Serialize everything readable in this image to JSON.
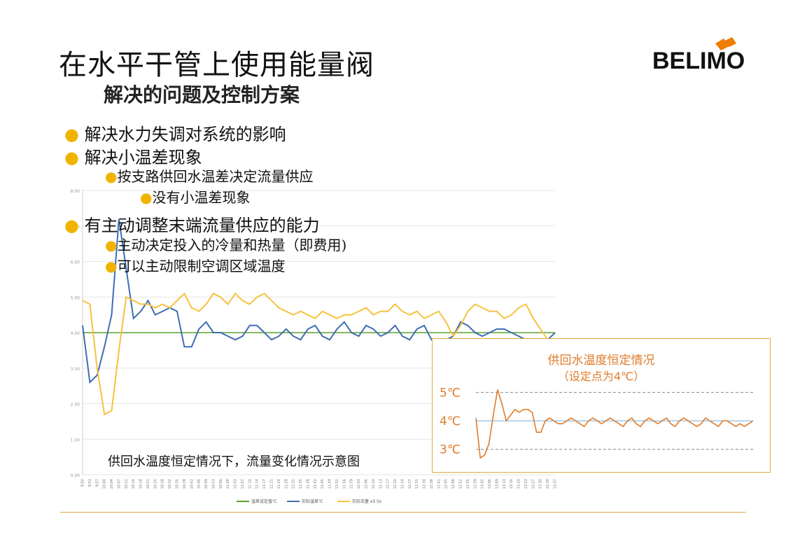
{
  "slide": {
    "title": "在水平干管上使用能量阀",
    "subtitle": "解决的问题及控制方案",
    "logo_text": "BELIMO",
    "bullets": [
      {
        "level": 1,
        "text": "解决水力失调对系统的影响"
      },
      {
        "level": 1,
        "text": "解决小温差现象"
      },
      {
        "level": 2,
        "text": "按支路供回水温差决定流量供应"
      },
      {
        "level": 3,
        "text": "没有小温差现象"
      },
      {
        "level": 1,
        "text": "有主动调整末端流量供应的能力"
      },
      {
        "level": 2,
        "text": "主动决定投入的冷量和热量（即费用)"
      },
      {
        "level": 2,
        "text": "可以主动限制空调区域温度"
      }
    ],
    "caption": "供回水温度恒定情况下，流量变化情况示意图",
    "colors": {
      "accent": "#f0b400",
      "green": "#5aa02c",
      "blue": "#3e6db5",
      "yellow": "#f6c23e",
      "orange": "#e07b2a",
      "border": "#e2a840"
    }
  },
  "chart_data": [
    {
      "type": "line",
      "title": "",
      "ylim": [
        0,
        8
      ],
      "yticks": [
        "0.00",
        "1.00",
        "2.00",
        "3.00",
        "4.00",
        "5.00",
        "6.00",
        "7.00",
        "8.00"
      ],
      "x": [
        "9:50",
        "9:53",
        "9:57",
        "10:00",
        "10:04",
        "10:07",
        "10:11",
        "10:14",
        "10:18",
        "10:21",
        "10:25",
        "10:28",
        "10:32",
        "10:35",
        "10:39",
        "10:42",
        "10:46",
        "10:49",
        "10:53",
        "10:56",
        "11:00",
        "11:03",
        "11:07",
        "11:10",
        "11:14",
        "11:17",
        "11:21",
        "11:24",
        "11:28",
        "11:31",
        "11:35",
        "11:38",
        "11:42",
        "11:45",
        "11:49",
        "11:52",
        "11:56",
        "11:59",
        "12:03",
        "12:06",
        "12:10",
        "12:13",
        "12:17",
        "12:20",
        "12:24",
        "12:27",
        "12:31",
        "12:34",
        "12:38",
        "12:41",
        "12:45",
        "12:48",
        "12:52",
        "12:55",
        "12:59",
        "13:02",
        "13:06",
        "13:09",
        "13:13",
        "13:16",
        "13:20",
        "13:23",
        "13:27",
        "13:30",
        "13:34",
        "13:37"
      ],
      "series": [
        {
          "name": "温差设定值℃",
          "color": "#5aa02c",
          "values": [
            4,
            4,
            4,
            4,
            4,
            4,
            4,
            4,
            4,
            4,
            4,
            4,
            4,
            4,
            4,
            4,
            4,
            4,
            4,
            4,
            4,
            4,
            4,
            4,
            4,
            4,
            4,
            4,
            4,
            4,
            4,
            4,
            4,
            4,
            4,
            4,
            4,
            4,
            4,
            4,
            4,
            4,
            4,
            4,
            4,
            4,
            4,
            4,
            4,
            4,
            4,
            4,
            4,
            4,
            4,
            4,
            4,
            4,
            4,
            4,
            4,
            4,
            4,
            4,
            4,
            4
          ]
        },
        {
          "name": "实际温差℃",
          "color": "#3e6db5",
          "values": [
            4.2,
            2.6,
            2.8,
            3.6,
            4.5,
            7.2,
            5.8,
            4.4,
            4.6,
            4.9,
            4.5,
            4.6,
            4.7,
            4.6,
            3.6,
            3.6,
            4.1,
            4.3,
            4.0,
            4.0,
            3.9,
            3.8,
            3.9,
            4.2,
            4.2,
            4.0,
            3.8,
            3.9,
            4.1,
            3.9,
            3.8,
            4.1,
            4.2,
            3.9,
            3.8,
            4.1,
            4.3,
            4.0,
            3.9,
            4.2,
            4.1,
            3.9,
            4.0,
            4.2,
            3.9,
            3.8,
            4.1,
            4.2,
            3.8,
            3.7,
            3.8,
            3.9,
            4.3,
            4.2,
            4.0,
            3.9,
            4.0,
            4.1,
            4.1,
            4.0,
            3.9,
            3.8,
            3.7,
            3.7,
            3.8,
            4.0
          ]
        },
        {
          "name": "实际流量 x5 l/s",
          "color": "#f6c23e",
          "values": [
            4.9,
            4.8,
            3.0,
            1.7,
            1.8,
            3.5,
            5.0,
            4.9,
            4.8,
            4.8,
            4.7,
            4.8,
            4.7,
            4.9,
            5.1,
            4.7,
            4.6,
            4.8,
            5.1,
            5.0,
            4.8,
            5.1,
            4.9,
            4.8,
            5.0,
            5.1,
            4.9,
            4.7,
            4.6,
            4.5,
            4.6,
            4.5,
            4.4,
            4.6,
            4.5,
            4.4,
            4.5,
            4.5,
            4.6,
            4.7,
            4.5,
            4.6,
            4.6,
            4.8,
            4.6,
            4.5,
            4.6,
            4.4,
            4.5,
            4.6,
            4.3,
            3.9,
            4.2,
            4.6,
            4.8,
            4.7,
            4.6,
            4.6,
            4.4,
            4.5,
            4.7,
            4.8,
            4.4,
            4.1,
            3.8,
            3.7
          ]
        }
      ],
      "legend_position": "bottom"
    },
    {
      "type": "line",
      "title": "供回水温度恒定情况",
      "subtitle": "（设定点为4℃）",
      "ylim": [
        2.5,
        5.5
      ],
      "reference_lines": [
        {
          "label": "5℃",
          "value": 5,
          "style": "dashed"
        },
        {
          "label": "4℃",
          "value": 4,
          "style": "solid",
          "color": "#7aaed6"
        },
        {
          "label": "3℃",
          "value": 3,
          "style": "dashed"
        }
      ],
      "series": [
        {
          "name": "",
          "color": "#e07b2a",
          "values": [
            4.1,
            2.7,
            2.8,
            3.2,
            4.2,
            5.1,
            4.6,
            4.0,
            4.2,
            4.4,
            4.3,
            4.4,
            4.4,
            4.3,
            3.6,
            3.6,
            4.0,
            4.1,
            4.0,
            3.9,
            3.9,
            4.0,
            4.1,
            4.0,
            3.9,
            3.8,
            4.0,
            4.1,
            4.0,
            3.9,
            4.0,
            4.1,
            4.0,
            3.9,
            3.8,
            4.0,
            4.1,
            3.9,
            3.8,
            4.0,
            4.1,
            4.0,
            3.9,
            4.0,
            4.1,
            3.9,
            3.8,
            4.0,
            4.1,
            4.0,
            3.9,
            3.8,
            3.9,
            4.1,
            4.0,
            3.9,
            3.8,
            4.0,
            4.0,
            3.9,
            3.8,
            3.9,
            3.8,
            3.9,
            4.0
          ]
        }
      ]
    }
  ]
}
